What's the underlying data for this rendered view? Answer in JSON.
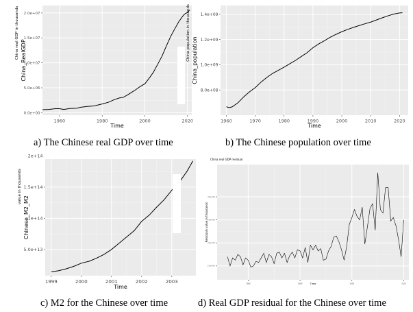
{
  "captions": {
    "a": "a) The Chinese real GDP over time",
    "b": "b) The Chinese population over time",
    "c": "c) M2 for the Chinese over time",
    "d": "d) Real GDP residual for the Chinese over time"
  },
  "chart_data": [
    {
      "id": "a",
      "type": "line",
      "xlabel": "Time",
      "ylabel": "China_RealGDP",
      "ylabel_top": "China real GDP in thousands",
      "xlim": [
        1952,
        2022
      ],
      "ylim": [
        -500000,
        21500000
      ],
      "xticks": [
        1960,
        1980,
        2000,
        2020
      ],
      "xtick_labels": [
        "1960",
        "1980",
        "2000",
        "2020"
      ],
      "yticks": [
        0,
        5000000,
        10000000,
        15000000,
        20000000
      ],
      "ytick_labels": [
        "0.0e+00",
        "5.0e+06",
        "1.0e+07",
        "1.5e+07",
        "2.0e+07"
      ],
      "grid": true,
      "series": [
        {
          "x": [
            1952,
            1955,
            1958,
            1960,
            1962,
            1965,
            1968,
            1970,
            1973,
            1976,
            1978,
            1980,
            1983,
            1985,
            1988,
            1990,
            1992,
            1995,
            1998,
            2000,
            2002,
            2004,
            2006,
            2008,
            2010,
            2012,
            2014,
            2016,
            2018,
            2019,
            2020,
            2021
          ],
          "y": [
            600000,
            650000,
            800000,
            800000,
            650000,
            850000,
            900000,
            1100000,
            1250000,
            1350000,
            1550000,
            1750000,
            2100000,
            2500000,
            2950000,
            3100000,
            3600000,
            4400000,
            5300000,
            5800000,
            6900000,
            8100000,
            9700000,
            11300000,
            13300000,
            15200000,
            16800000,
            18300000,
            19500000,
            19900000,
            20100000,
            20600000
          ]
        }
      ]
    },
    {
      "id": "b",
      "type": "line",
      "xlabel": "Time",
      "ylabel": "China_population",
      "ylabel_top": "China population in thousands",
      "xlim": [
        1958,
        2023
      ],
      "ylim": [
        600000000,
        1470000000
      ],
      "xticks": [
        1960,
        1970,
        1980,
        1990,
        2000,
        2010,
        2020
      ],
      "xtick_labels": [
        "1960",
        "1970",
        "1980",
        "1990",
        "2000",
        "2010",
        "2020"
      ],
      "yticks": [
        800000000,
        1000000000,
        1200000000,
        1400000000
      ],
      "ytick_labels": [
        "8.0e+08",
        "1.0e+09",
        "1.2e+09",
        "1.4e+09"
      ],
      "grid": true,
      "series": [
        {
          "x": [
            1960,
            1961,
            1962,
            1964,
            1966,
            1968,
            1970,
            1972,
            1974,
            1976,
            1978,
            1980,
            1982,
            1984,
            1986,
            1988,
            1990,
            1992,
            1994,
            1996,
            1998,
            2000,
            2002,
            2004,
            2006,
            2008,
            2010,
            2012,
            2014,
            2016,
            2018,
            2020,
            2021
          ],
          "y": [
            667000000,
            660000000,
            666000000,
            698000000,
            745000000,
            785000000,
            818000000,
            862000000,
            899000000,
            931000000,
            956000000,
            981000000,
            1008000000,
            1035000000,
            1066000000,
            1096000000,
            1135000000,
            1165000000,
            1191000000,
            1218000000,
            1241000000,
            1262000000,
            1280000000,
            1296000000,
            1311000000,
            1325000000,
            1338000000,
            1355000000,
            1372000000,
            1388000000,
            1402000000,
            1411000000,
            1412000000
          ]
        }
      ]
    },
    {
      "id": "c",
      "type": "line",
      "xlabel": "Time",
      "ylabel": "Chinese_M2_M2",
      "ylabel_top": "value in thousands",
      "xlim": [
        1998.8,
        2003.8
      ],
      "ylim": [
        8000000000000,
        195000000000000
      ],
      "xticks": [
        1999,
        2000,
        2001,
        2002,
        2003
      ],
      "xtick_labels": [
        "1999",
        "2000",
        "2001",
        "2002",
        "2003"
      ],
      "yticks": [
        50000000000000,
        100000000000000,
        150000000000000,
        200000000000000
      ],
      "ytick_labels": [
        "5.0e+13",
        "1e+14",
        "1.5e+14",
        "2e+14"
      ],
      "grid": true,
      "series": [
        {
          "x": [
            1999.0,
            1999.25,
            1999.5,
            1999.75,
            2000.0,
            2000.25,
            2000.5,
            2000.75,
            2001.0,
            2001.25,
            2001.5,
            2001.75,
            2002.0,
            2002.25,
            2002.5,
            2002.75,
            2003.0,
            2003.25,
            2003.5,
            2003.7
          ],
          "y": [
            14000000000000,
            16000000000000,
            19000000000000,
            23000000000000,
            28000000000000,
            31000000000000,
            36000000000000,
            42000000000000,
            50000000000000,
            60000000000000,
            70000000000000,
            80000000000000,
            95000000000000,
            105000000000000,
            118000000000000,
            130000000000000,
            145000000000000,
            158000000000000,
            175000000000000,
            192000000000000
          ]
        }
      ]
    },
    {
      "id": "d",
      "type": "line",
      "title": "China real GDP residual",
      "xlabel": "Time",
      "ylabel": "Residuals value in thousands",
      "xticks": [
        1960,
        1980,
        2000,
        2020
      ],
      "xtick_labels": [
        "1960",
        "1980",
        "2000",
        "2020"
      ],
      "yticks": [
        -2000000,
        0,
        2000000,
        4000000
      ],
      "ytick_labels": [
        "-2.0e+06",
        "0.0e+00",
        "2.0e+06",
        "4.0e+06"
      ],
      "xlim": [
        1948,
        2022
      ],
      "ylim": [
        -3200000,
        6800000
      ],
      "grid": true,
      "series": [
        {
          "x": [
            1952,
            1953,
            1954,
            1955,
            1956,
            1957,
            1958,
            1959,
            1960,
            1961,
            1962,
            1963,
            1964,
            1965,
            1966,
            1967,
            1968,
            1969,
            1970,
            1971,
            1972,
            1973,
            1974,
            1975,
            1976,
            1977,
            1978,
            1979,
            1980,
            1981,
            1982,
            1983,
            1984,
            1985,
            1986,
            1987,
            1988,
            1989,
            1990,
            1991,
            1992,
            1993,
            1994,
            1995,
            1996,
            1997,
            1998,
            1999,
            2000,
            2001,
            2002,
            2003,
            2004,
            2005,
            2006,
            2007,
            2008,
            2009,
            2010,
            2011,
            2012,
            2013,
            2014,
            2015,
            2016,
            2017,
            2018,
            2019,
            2020
          ],
          "y": [
            -1200000,
            -2000000,
            -1300000,
            -1500000,
            -1000000,
            -1200000,
            -1900000,
            -1300000,
            -1500000,
            -2100000,
            -2000000,
            -1600000,
            -1700000,
            -1300000,
            -900000,
            -1700000,
            -1000000,
            -1200000,
            -1800000,
            -900000,
            -800000,
            -1300000,
            -900000,
            -1700000,
            -1100000,
            -800000,
            -1300000,
            -600000,
            -700000,
            -1300000,
            -400000,
            -1700000,
            -200000,
            -600000,
            -200000,
            -700000,
            -500000,
            -1500000,
            -1400000,
            -700000,
            -300000,
            500000,
            600000,
            100000,
            -600000,
            -1500000,
            -300000,
            1600000,
            2200000,
            2900000,
            2300000,
            2000000,
            3100000,
            -100000,
            1400000,
            3000000,
            3400000,
            1100000,
            6100000,
            2900000,
            2600000,
            4800000,
            4800000,
            1900000,
            2200000,
            1500000,
            300000,
            -1200000,
            2000000
          ]
        }
      ]
    }
  ]
}
